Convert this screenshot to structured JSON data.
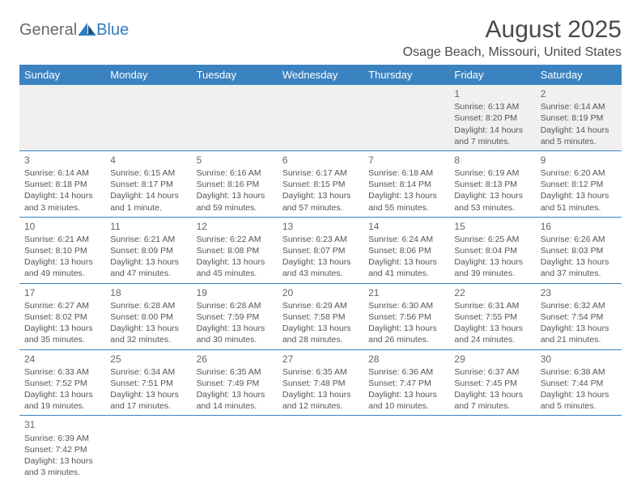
{
  "logo": {
    "general": "General",
    "blue": "Blue"
  },
  "title": "August 2025",
  "location": "Osage Beach, Missouri, United States",
  "colors": {
    "header_bg": "#3b83c0",
    "header_text": "#ffffff",
    "body_text": "#555555",
    "rule": "#3b83c0",
    "empty_bg": "#f0f0f0"
  },
  "weekdays": [
    "Sunday",
    "Monday",
    "Tuesday",
    "Wednesday",
    "Thursday",
    "Friday",
    "Saturday"
  ],
  "weeks": [
    [
      null,
      null,
      null,
      null,
      null,
      {
        "n": "1",
        "sr": "Sunrise: 6:13 AM",
        "ss": "Sunset: 8:20 PM",
        "dl": "Daylight: 14 hours and 7 minutes."
      },
      {
        "n": "2",
        "sr": "Sunrise: 6:14 AM",
        "ss": "Sunset: 8:19 PM",
        "dl": "Daylight: 14 hours and 5 minutes."
      }
    ],
    [
      {
        "n": "3",
        "sr": "Sunrise: 6:14 AM",
        "ss": "Sunset: 8:18 PM",
        "dl": "Daylight: 14 hours and 3 minutes."
      },
      {
        "n": "4",
        "sr": "Sunrise: 6:15 AM",
        "ss": "Sunset: 8:17 PM",
        "dl": "Daylight: 14 hours and 1 minute."
      },
      {
        "n": "5",
        "sr": "Sunrise: 6:16 AM",
        "ss": "Sunset: 8:16 PM",
        "dl": "Daylight: 13 hours and 59 minutes."
      },
      {
        "n": "6",
        "sr": "Sunrise: 6:17 AM",
        "ss": "Sunset: 8:15 PM",
        "dl": "Daylight: 13 hours and 57 minutes."
      },
      {
        "n": "7",
        "sr": "Sunrise: 6:18 AM",
        "ss": "Sunset: 8:14 PM",
        "dl": "Daylight: 13 hours and 55 minutes."
      },
      {
        "n": "8",
        "sr": "Sunrise: 6:19 AM",
        "ss": "Sunset: 8:13 PM",
        "dl": "Daylight: 13 hours and 53 minutes."
      },
      {
        "n": "9",
        "sr": "Sunrise: 6:20 AM",
        "ss": "Sunset: 8:12 PM",
        "dl": "Daylight: 13 hours and 51 minutes."
      }
    ],
    [
      {
        "n": "10",
        "sr": "Sunrise: 6:21 AM",
        "ss": "Sunset: 8:10 PM",
        "dl": "Daylight: 13 hours and 49 minutes."
      },
      {
        "n": "11",
        "sr": "Sunrise: 6:21 AM",
        "ss": "Sunset: 8:09 PM",
        "dl": "Daylight: 13 hours and 47 minutes."
      },
      {
        "n": "12",
        "sr": "Sunrise: 6:22 AM",
        "ss": "Sunset: 8:08 PM",
        "dl": "Daylight: 13 hours and 45 minutes."
      },
      {
        "n": "13",
        "sr": "Sunrise: 6:23 AM",
        "ss": "Sunset: 8:07 PM",
        "dl": "Daylight: 13 hours and 43 minutes."
      },
      {
        "n": "14",
        "sr": "Sunrise: 6:24 AM",
        "ss": "Sunset: 8:06 PM",
        "dl": "Daylight: 13 hours and 41 minutes."
      },
      {
        "n": "15",
        "sr": "Sunrise: 6:25 AM",
        "ss": "Sunset: 8:04 PM",
        "dl": "Daylight: 13 hours and 39 minutes."
      },
      {
        "n": "16",
        "sr": "Sunrise: 6:26 AM",
        "ss": "Sunset: 8:03 PM",
        "dl": "Daylight: 13 hours and 37 minutes."
      }
    ],
    [
      {
        "n": "17",
        "sr": "Sunrise: 6:27 AM",
        "ss": "Sunset: 8:02 PM",
        "dl": "Daylight: 13 hours and 35 minutes."
      },
      {
        "n": "18",
        "sr": "Sunrise: 6:28 AM",
        "ss": "Sunset: 8:00 PM",
        "dl": "Daylight: 13 hours and 32 minutes."
      },
      {
        "n": "19",
        "sr": "Sunrise: 6:28 AM",
        "ss": "Sunset: 7:59 PM",
        "dl": "Daylight: 13 hours and 30 minutes."
      },
      {
        "n": "20",
        "sr": "Sunrise: 6:29 AM",
        "ss": "Sunset: 7:58 PM",
        "dl": "Daylight: 13 hours and 28 minutes."
      },
      {
        "n": "21",
        "sr": "Sunrise: 6:30 AM",
        "ss": "Sunset: 7:56 PM",
        "dl": "Daylight: 13 hours and 26 minutes."
      },
      {
        "n": "22",
        "sr": "Sunrise: 6:31 AM",
        "ss": "Sunset: 7:55 PM",
        "dl": "Daylight: 13 hours and 24 minutes."
      },
      {
        "n": "23",
        "sr": "Sunrise: 6:32 AM",
        "ss": "Sunset: 7:54 PM",
        "dl": "Daylight: 13 hours and 21 minutes."
      }
    ],
    [
      {
        "n": "24",
        "sr": "Sunrise: 6:33 AM",
        "ss": "Sunset: 7:52 PM",
        "dl": "Daylight: 13 hours and 19 minutes."
      },
      {
        "n": "25",
        "sr": "Sunrise: 6:34 AM",
        "ss": "Sunset: 7:51 PM",
        "dl": "Daylight: 13 hours and 17 minutes."
      },
      {
        "n": "26",
        "sr": "Sunrise: 6:35 AM",
        "ss": "Sunset: 7:49 PM",
        "dl": "Daylight: 13 hours and 14 minutes."
      },
      {
        "n": "27",
        "sr": "Sunrise: 6:35 AM",
        "ss": "Sunset: 7:48 PM",
        "dl": "Daylight: 13 hours and 12 minutes."
      },
      {
        "n": "28",
        "sr": "Sunrise: 6:36 AM",
        "ss": "Sunset: 7:47 PM",
        "dl": "Daylight: 13 hours and 10 minutes."
      },
      {
        "n": "29",
        "sr": "Sunrise: 6:37 AM",
        "ss": "Sunset: 7:45 PM",
        "dl": "Daylight: 13 hours and 7 minutes."
      },
      {
        "n": "30",
        "sr": "Sunrise: 6:38 AM",
        "ss": "Sunset: 7:44 PM",
        "dl": "Daylight: 13 hours and 5 minutes."
      }
    ],
    [
      {
        "n": "31",
        "sr": "Sunrise: 6:39 AM",
        "ss": "Sunset: 7:42 PM",
        "dl": "Daylight: 13 hours and 3 minutes."
      },
      null,
      null,
      null,
      null,
      null,
      null
    ]
  ]
}
